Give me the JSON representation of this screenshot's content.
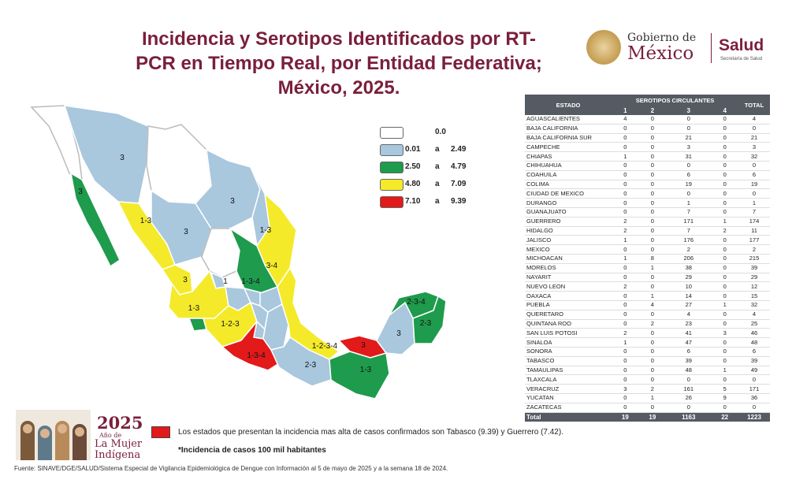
{
  "title_lines": [
    "Incidencia y Serotipos Identificados por RT-",
    "PCR en Tiempo Real, por Entidad Federativa;",
    "México, 2025."
  ],
  "logo": {
    "gobierno": "Gobierno de",
    "mexico": "México",
    "salud": "Salud",
    "secretaria": "Secretaría de Salud"
  },
  "colors": {
    "blanco": "#ffffff",
    "azul": "#a9c7dd",
    "verde": "#1e9b4c",
    "amarillo": "#f4ea2a",
    "rojo": "#e21a1a",
    "titulo": "#7a1f3b",
    "tabla_header": "#555a63"
  },
  "legend": [
    {
      "color": "#ffffff",
      "low": "",
      "sep": "",
      "high": "0.0"
    },
    {
      "color": "#a9c7dd",
      "low": "0.01",
      "sep": "a",
      "high": "2.49"
    },
    {
      "color": "#1e9b4c",
      "low": "2.50",
      "sep": "a",
      "high": "4.79"
    },
    {
      "color": "#f4ea2a",
      "low": "4.80",
      "sep": "a",
      "high": "7.09"
    },
    {
      "color": "#e21a1a",
      "low": "7.10",
      "sep": "a",
      "high": "9.39"
    }
  ],
  "map_labels": [
    "3",
    "3",
    "1-3",
    "3",
    "3",
    "1-3",
    "3-4",
    "1",
    "1-3-4",
    "3",
    "1-3",
    "1-2-3",
    "1-3-4",
    "2-3",
    "1-2-3-4",
    "3",
    "1-3",
    "3",
    "2-3-4",
    "2-3"
  ],
  "table": {
    "headers": {
      "estado": "ESTADO",
      "serotipos": "SEROTIPOS CIRCULANTES",
      "total": "TOTAL",
      "cols": [
        "1",
        "2",
        "3",
        "4"
      ]
    },
    "rows": [
      [
        "AGUASCALIENTES",
        "4",
        "0",
        "0",
        "0",
        "4"
      ],
      [
        "BAJA CALIFORNIA",
        "0",
        "0",
        "0",
        "0",
        "0"
      ],
      [
        "BAJA CALIFORNIA SUR",
        "0",
        "0",
        "21",
        "0",
        "21"
      ],
      [
        "CAMPECHE",
        "0",
        "0",
        "3",
        "0",
        "3"
      ],
      [
        "CHIAPAS",
        "1",
        "0",
        "31",
        "0",
        "32"
      ],
      [
        "CHIHUAHUA",
        "0",
        "0",
        "0",
        "0",
        "0"
      ],
      [
        "COAHUILA",
        "0",
        "0",
        "6",
        "0",
        "6"
      ],
      [
        "COLIMA",
        "0",
        "0",
        "19",
        "0",
        "19"
      ],
      [
        "CIUDAD DE MEXICO",
        "0",
        "0",
        "0",
        "0",
        "0"
      ],
      [
        "DURANGO",
        "0",
        "0",
        "1",
        "0",
        "1"
      ],
      [
        "GUANAJUATO",
        "0",
        "0",
        "7",
        "0",
        "7"
      ],
      [
        "GUERRERO",
        "2",
        "0",
        "171",
        "1",
        "174"
      ],
      [
        "HIDALGO",
        "2",
        "0",
        "7",
        "2",
        "11"
      ],
      [
        "JALISCO",
        "1",
        "0",
        "176",
        "0",
        "177"
      ],
      [
        "MEXICO",
        "0",
        "0",
        "2",
        "0",
        "2"
      ],
      [
        "MICHOACAN",
        "1",
        "8",
        "206",
        "0",
        "215"
      ],
      [
        "MORELOS",
        "0",
        "1",
        "38",
        "0",
        "39"
      ],
      [
        "NAYARIT",
        "0",
        "0",
        "29",
        "0",
        "29"
      ],
      [
        "NUEVO LEON",
        "2",
        "0",
        "10",
        "0",
        "12"
      ],
      [
        "OAXACA",
        "0",
        "1",
        "14",
        "0",
        "15"
      ],
      [
        "PUEBLA",
        "0",
        "4",
        "27",
        "1",
        "32"
      ],
      [
        "QUERETARO",
        "0",
        "0",
        "4",
        "0",
        "4"
      ],
      [
        "QUINTANA ROO",
        "0",
        "2",
        "23",
        "0",
        "25"
      ],
      [
        "SAN LUIS POTOSI",
        "2",
        "0",
        "41",
        "3",
        "46"
      ],
      [
        "SINALOA",
        "1",
        "0",
        "47",
        "0",
        "48"
      ],
      [
        "SONORA",
        "0",
        "0",
        "6",
        "0",
        "6"
      ],
      [
        "TABASCO",
        "0",
        "0",
        "39",
        "0",
        "39"
      ],
      [
        "TAMAULIPAS",
        "0",
        "0",
        "48",
        "1",
        "49"
      ],
      [
        "TLAXCALA",
        "0",
        "0",
        "0",
        "0",
        "0"
      ],
      [
        "VERACRUZ",
        "3",
        "2",
        "161",
        "5",
        "171"
      ],
      [
        "YUCATAN",
        "0",
        "1",
        "26",
        "9",
        "36"
      ],
      [
        "ZACATECAS",
        "0",
        "0",
        "0",
        "0",
        "0"
      ]
    ],
    "total": [
      "Total",
      "19",
      "19",
      "1163",
      "22",
      "1223"
    ]
  },
  "bottom_logo": {
    "year": "2025",
    "ano": "Año de",
    "mujer1": "La Mujer",
    "mujer2": "Indígena"
  },
  "note": "Los estados que presentan la incidencia mas alta de casos confirmados son Tabasco (9.39) y Guerrero (7.42).",
  "note2": "*Incidencia de casos 100 mil habitantes",
  "source": "Fuente: SINAVE/DGE/SALUD/Sistema Especial de Vigilancia Epidemiológica de Dengue con Información al 5 de mayo de 2025 y a la semana 18 de 2024."
}
